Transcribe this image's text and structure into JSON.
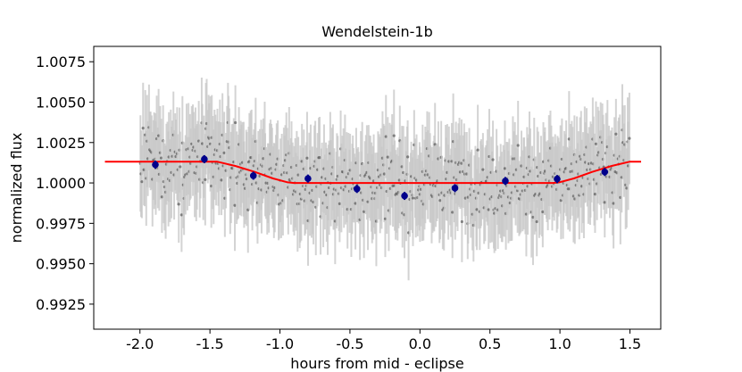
{
  "chart_data": {
    "type": "scatter",
    "title": "Wendelstein-1b",
    "xlabel": "hours from mid - eclipse",
    "ylabel": "normalized flux",
    "xlim": [
      -2.33,
      1.72
    ],
    "ylim": [
      0.99095,
      1.00845
    ],
    "xticks": [
      -2.0,
      -1.5,
      -1.0,
      -0.5,
      0.0,
      0.5,
      1.0,
      1.5
    ],
    "xtick_labels": [
      "-2.0",
      "-1.5",
      "-1.0",
      "-0.5",
      "0.0",
      "0.5",
      "1.0",
      "1.5"
    ],
    "yticks": [
      0.9925,
      0.995,
      0.9975,
      1.0,
      1.0025,
      1.005,
      1.0075
    ],
    "ytick_labels": [
      "0.9925",
      "0.9950",
      "0.9975",
      "1.0000",
      "1.0025",
      "1.0050",
      "1.0075"
    ],
    "grid": false,
    "legend": "none",
    "series": [
      {
        "kind": "model",
        "color": "#ff0000",
        "points": [
          [
            -2.25,
            1.00132
          ],
          [
            -1.45,
            1.00132
          ],
          [
            -1.32,
            1.00105
          ],
          [
            -1.18,
            1.00068
          ],
          [
            -1.05,
            1.00028
          ],
          [
            -0.95,
            1.00005
          ],
          [
            -0.9,
            1.0
          ],
          [
            0.95,
            1.0
          ],
          [
            1.0,
            1.00005
          ],
          [
            1.1,
            1.00028
          ],
          [
            1.23,
            1.00068
          ],
          [
            1.37,
            1.00105
          ],
          [
            1.5,
            1.00132
          ],
          [
            1.58,
            1.00132
          ]
        ]
      },
      {
        "kind": "binned",
        "color": "#00008b",
        "x": [
          -1.89,
          -1.54,
          -1.19,
          -0.8,
          -0.45,
          -0.11,
          0.25,
          0.61,
          0.98,
          1.32
        ],
        "y": [
          1.00113,
          1.00147,
          1.00045,
          1.00027,
          0.99963,
          0.9992,
          0.99968,
          1.00012,
          1.00024,
          1.00068
        ],
        "yerr": [
          0.00025,
          0.00025,
          0.00025,
          0.00025,
          0.00025,
          0.00025,
          0.00025,
          0.00025,
          0.00025,
          0.00025
        ]
      },
      {
        "kind": "unbinned",
        "color": "#444444",
        "errcolor": "#c8c8c8",
        "x_range": [
          -2.0,
          1.5
        ],
        "n_points": 560,
        "scatter_sigma": 0.0024,
        "yerr": 0.0025
      }
    ]
  }
}
